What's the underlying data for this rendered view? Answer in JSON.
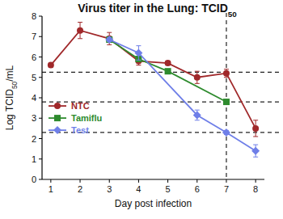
{
  "chart_data": {
    "type": "line",
    "title": "Virus titer in the Lung: TCID50",
    "x_label": "Day post infection",
    "y_label": "Log TCID50/mL",
    "xlim": [
      0.7,
      8.3
    ],
    "xticks": [
      1,
      2,
      3,
      4,
      5,
      6,
      7,
      8
    ],
    "ylim": [
      0,
      8
    ],
    "yticks": [
      0,
      1,
      2,
      3,
      4,
      5,
      6,
      7,
      8
    ],
    "grid": false,
    "legend": "left",
    "reference_lines": {
      "y": [
        5.25,
        3.8,
        2.3
      ],
      "x": [
        7
      ]
    },
    "series": [
      {
        "name": "NTC",
        "color": "#a0282a",
        "marker": "circle",
        "x": [
          1,
          2,
          3,
          4,
          5,
          6,
          7,
          8
        ],
        "values": [
          5.6,
          7.3,
          6.9,
          5.8,
          5.7,
          5.0,
          5.2,
          2.5
        ],
        "errors": [
          0.1,
          0.4,
          0.3,
          0.2,
          0.1,
          0.3,
          0.2,
          0.4
        ]
      },
      {
        "name": "Tamiflu",
        "color": "#2e8b2e",
        "marker": "square",
        "x": [
          3,
          4,
          5,
          7
        ],
        "values": [
          6.85,
          5.9,
          5.3,
          3.8
        ],
        "errors": [
          0.1,
          0.1,
          0.1,
          0.1
        ]
      },
      {
        "name": "Test",
        "color": "#6f7fe8",
        "marker": "diamond",
        "x": [
          3,
          4,
          6,
          7,
          8
        ],
        "values": [
          6.85,
          6.2,
          3.15,
          2.3,
          1.4
        ],
        "errors": [
          0.1,
          0.35,
          0.25,
          0.1,
          0.3
        ]
      }
    ]
  }
}
